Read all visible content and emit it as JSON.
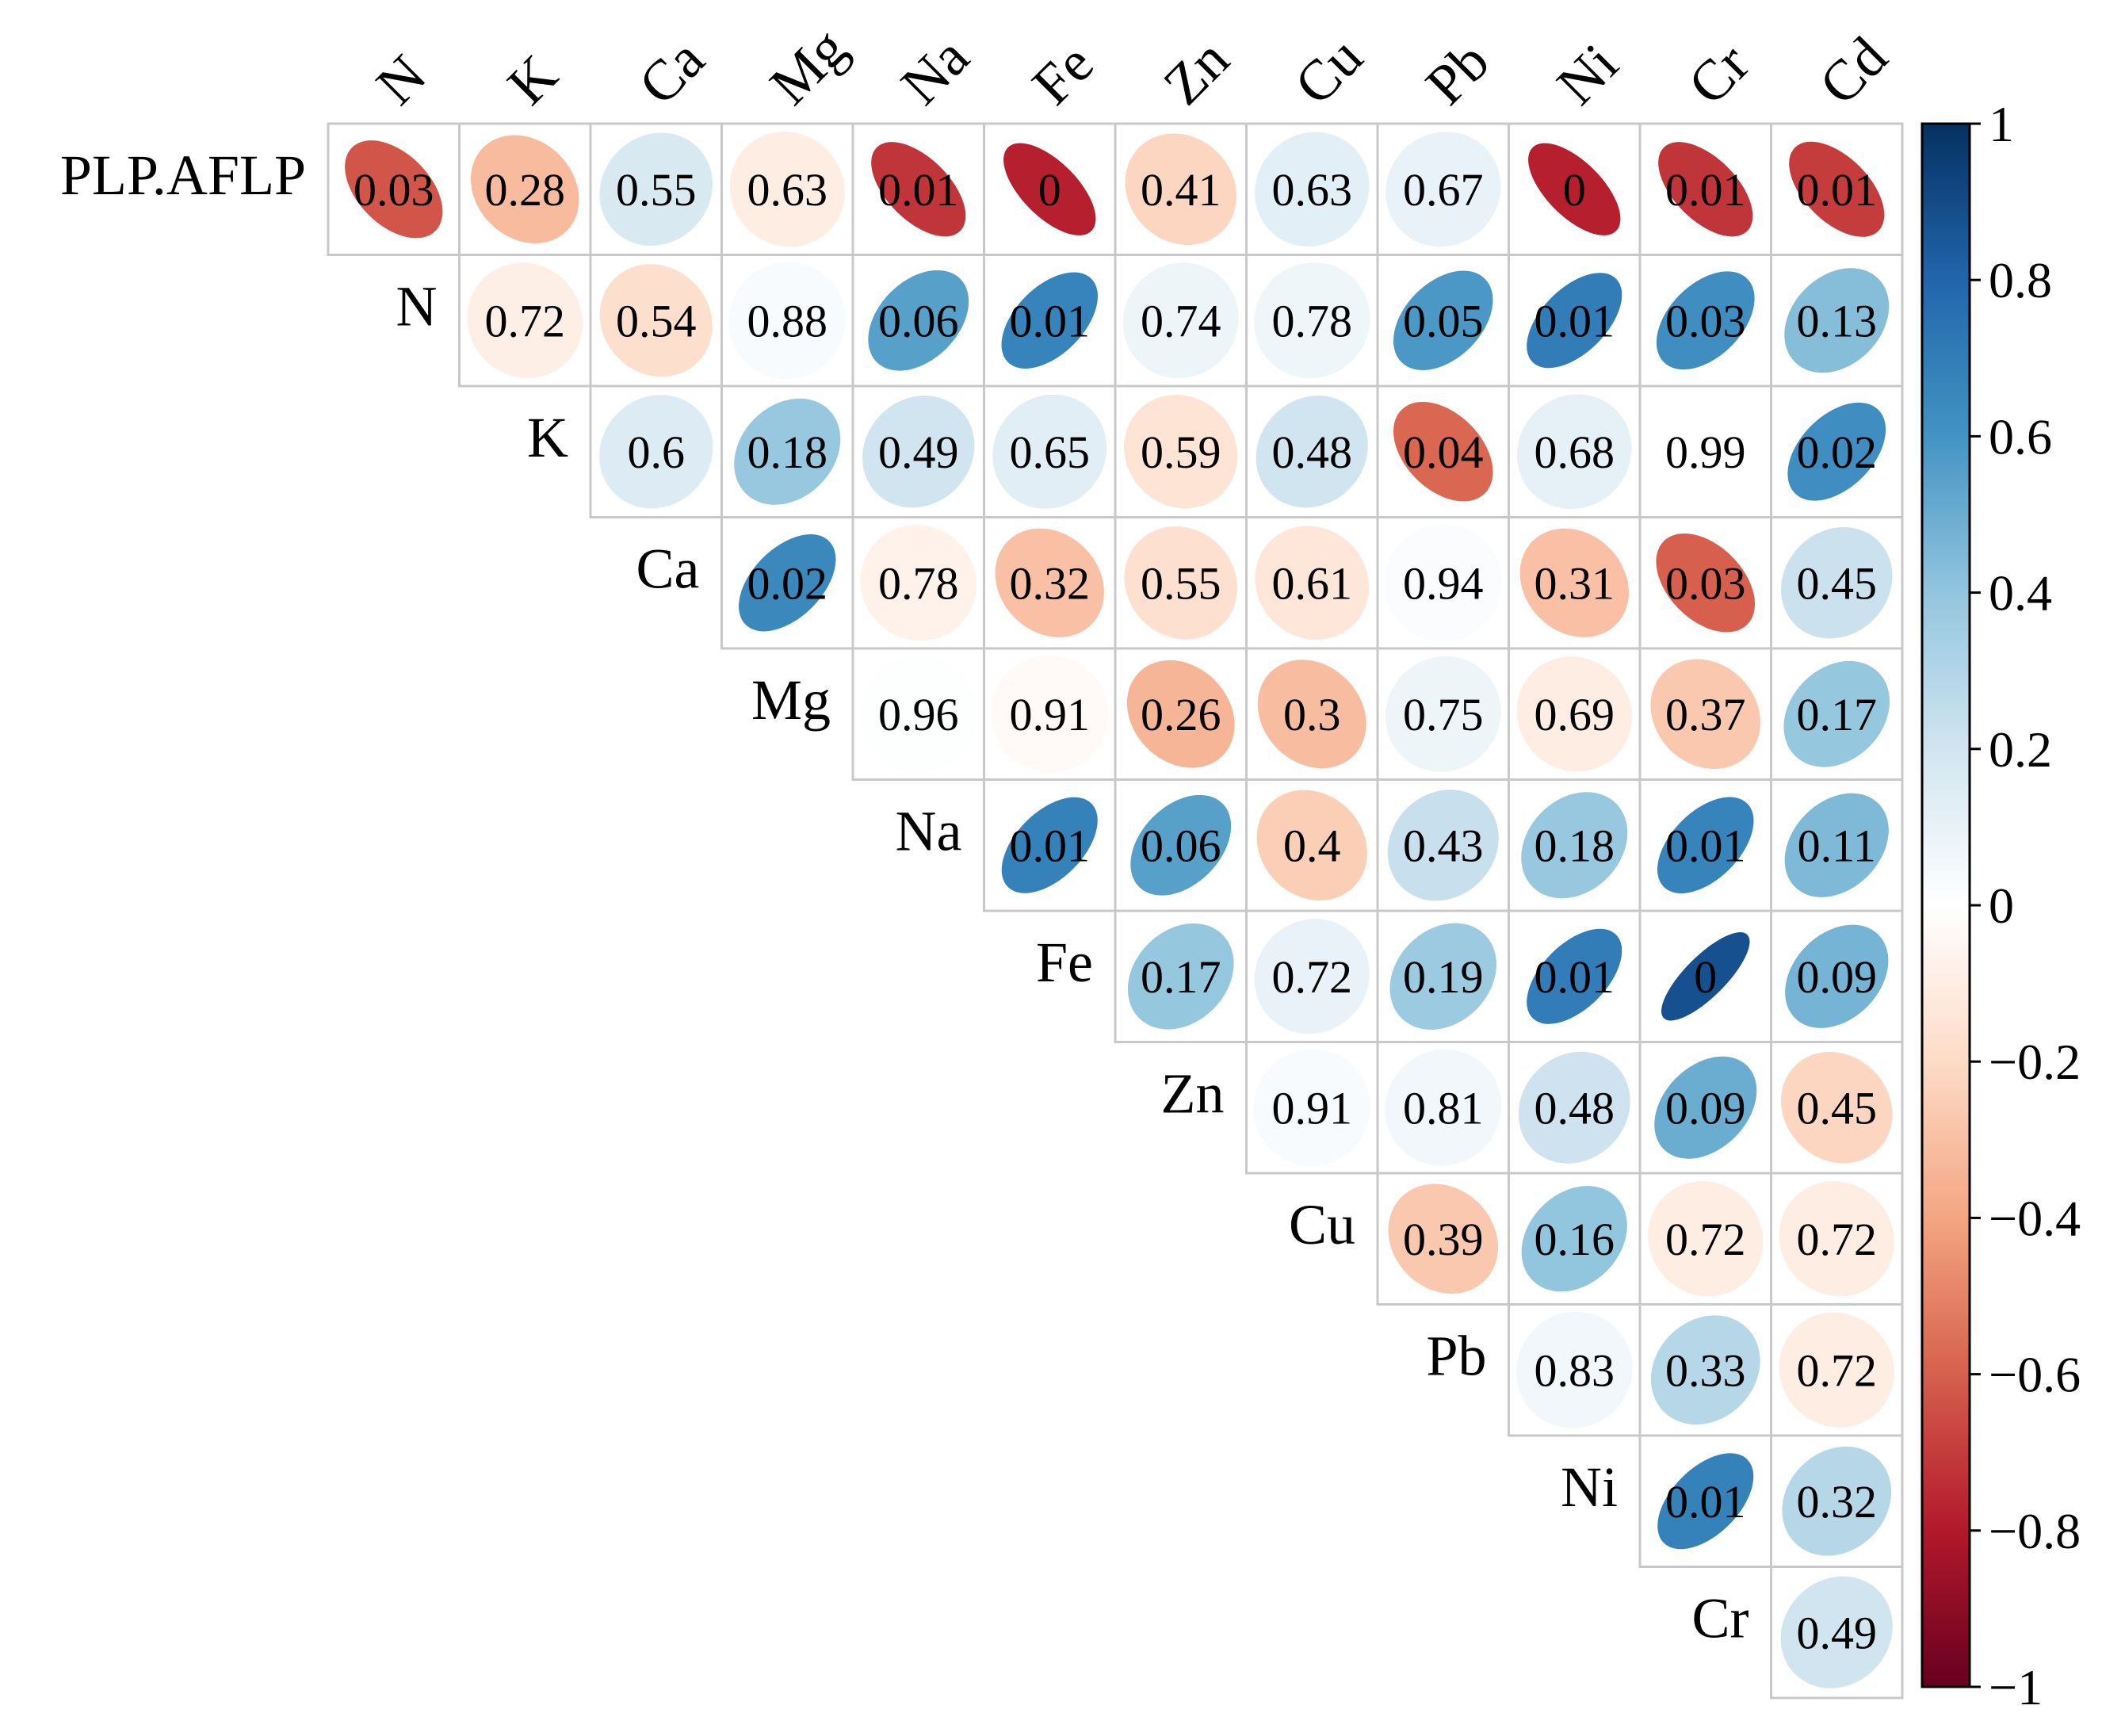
{
  "chart_data": {
    "type": "heatmap",
    "title": "",
    "columns": [
      "N",
      "K",
      "Ca",
      "Mg",
      "Na",
      "Fe",
      "Zn",
      "Cu",
      "Pb",
      "Ni",
      "Cr",
      "Cd"
    ],
    "rows": [
      "PLP.AFLP",
      "N",
      "K",
      "Ca",
      "Mg",
      "Na",
      "Fe",
      "Zn",
      "Cu",
      "Pb",
      "Ni",
      "Cr"
    ],
    "cells": [
      [
        {
          "label": "0.03",
          "r": -0.63
        },
        {
          "label": "0.28",
          "r": -0.32
        },
        {
          "label": "0.55",
          "r": 0.17
        },
        {
          "label": "0.63",
          "r": -0.1
        },
        {
          "label": "0.01",
          "r": -0.72
        },
        {
          "label": "0",
          "r": -0.78
        },
        {
          "label": "0.41",
          "r": -0.22
        },
        {
          "label": "0.63",
          "r": 0.12
        },
        {
          "label": "0.67",
          "r": 0.1
        },
        {
          "label": "0",
          "r": -0.78
        },
        {
          "label": "0.01",
          "r": -0.72
        },
        {
          "label": "0.01",
          "r": -0.7
        }
      ],
      [
        {
          "label": "0.72",
          "r": -0.09
        },
        {
          "label": "0.54",
          "r": -0.18
        },
        {
          "label": "0.88",
          "r": 0.03
        },
        {
          "label": "0.06",
          "r": 0.55
        },
        {
          "label": "0.01",
          "r": 0.67
        },
        {
          "label": "0.74",
          "r": 0.08
        },
        {
          "label": "0.78",
          "r": 0.07
        },
        {
          "label": "0.05",
          "r": 0.58
        },
        {
          "label": "0.01",
          "r": 0.7
        },
        {
          "label": "0.03",
          "r": 0.62
        },
        {
          "label": "0.13",
          "r": 0.43
        }
      ],
      [
        {
          "label": "0.6",
          "r": 0.15
        },
        {
          "label": "0.18",
          "r": 0.38
        },
        {
          "label": "0.49",
          "r": 0.2
        },
        {
          "label": "0.65",
          "r": 0.13
        },
        {
          "label": "0.59",
          "r": -0.15
        },
        {
          "label": "0.48",
          "r": 0.2
        },
        {
          "label": "0.04",
          "r": -0.58
        },
        {
          "label": "0.68",
          "r": 0.11
        },
        {
          "label": "0.99",
          "r": 0.0
        },
        {
          "label": "0.02",
          "r": 0.62
        }
      ],
      [
        {
          "label": "0.02",
          "r": 0.65
        },
        {
          "label": "0.78",
          "r": -0.07
        },
        {
          "label": "0.32",
          "r": -0.3
        },
        {
          "label": "0.55",
          "r": -0.17
        },
        {
          "label": "0.61",
          "r": -0.14
        },
        {
          "label": "0.94",
          "r": 0.02
        },
        {
          "label": "0.31",
          "r": -0.3
        },
        {
          "label": "0.03",
          "r": -0.6
        },
        {
          "label": "0.45",
          "r": 0.22
        }
      ],
      [
        {
          "label": "0.96",
          "r": 0.01
        },
        {
          "label": "0.91",
          "r": -0.03
        },
        {
          "label": "0.26",
          "r": -0.34
        },
        {
          "label": "0.3",
          "r": -0.31
        },
        {
          "label": "0.75",
          "r": 0.08
        },
        {
          "label": "0.69",
          "r": -0.1
        },
        {
          "label": "0.37",
          "r": -0.27
        },
        {
          "label": "0.17",
          "r": 0.39
        }
      ],
      [
        {
          "label": "0.01",
          "r": 0.68
        },
        {
          "label": "0.06",
          "r": 0.55
        },
        {
          "label": "0.4",
          "r": -0.25
        },
        {
          "label": "0.43",
          "r": 0.23
        },
        {
          "label": "0.18",
          "r": 0.38
        },
        {
          "label": "0.01",
          "r": 0.67
        },
        {
          "label": "0.11",
          "r": 0.45
        }
      ],
      [
        {
          "label": "0.17",
          "r": 0.39
        },
        {
          "label": "0.72",
          "r": 0.1
        },
        {
          "label": "0.19",
          "r": 0.37
        },
        {
          "label": "0.01",
          "r": 0.7
        },
        {
          "label": "0",
          "r": 0.88
        },
        {
          "label": "0.09",
          "r": 0.47
        }
      ],
      [
        {
          "label": "0.91",
          "r": 0.03
        },
        {
          "label": "0.81",
          "r": 0.06
        },
        {
          "label": "0.48",
          "r": 0.21
        },
        {
          "label": "0.09",
          "r": 0.5
        },
        {
          "label": "0.45",
          "r": -0.22
        }
      ],
      [
        {
          "label": "0.39",
          "r": -0.27
        },
        {
          "label": "0.16",
          "r": 0.4
        },
        {
          "label": "0.72",
          "r": -0.1
        },
        {
          "label": "0.72",
          "r": -0.1
        }
      ],
      [
        {
          "label": "0.83",
          "r": 0.06
        },
        {
          "label": "0.33",
          "r": 0.29
        },
        {
          "label": "0.72",
          "r": -0.1
        }
      ],
      [
        {
          "label": "0.01",
          "r": 0.68
        },
        {
          "label": "0.32",
          "r": 0.29
        }
      ],
      [
        {
          "label": "0.49",
          "r": 0.2
        }
      ]
    ],
    "colorbar": {
      "min": -1,
      "max": 1,
      "ticks": [
        1,
        0.8,
        0.6,
        0.4,
        0.2,
        0,
        -0.2,
        -0.4,
        -0.6,
        -0.8,
        -1
      ],
      "tick_labels": [
        "1",
        "0.8",
        "0.6",
        "0.4",
        "0.2",
        "0",
        "−0.2",
        "−0.4",
        "−0.6",
        "−0.8",
        "−1"
      ],
      "colors": [
        "#67001F",
        "#B2182B",
        "#D6604D",
        "#F4A582",
        "#FDDBC7",
        "#FFFFFF",
        "#D1E5F0",
        "#92C5DE",
        "#4393C3",
        "#2166AC",
        "#053061"
      ]
    }
  }
}
